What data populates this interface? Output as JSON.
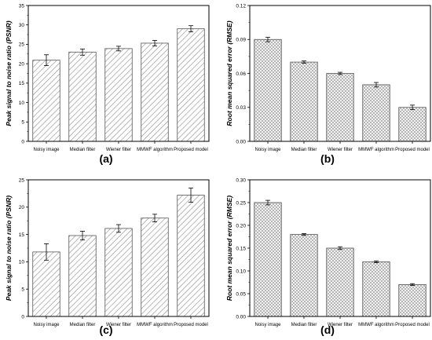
{
  "figure": {
    "panels": [
      {
        "label": "(a)"
      },
      {
        "label": "(b)"
      },
      {
        "label": "(c)"
      },
      {
        "label": "(d)"
      }
    ]
  },
  "chart_data": [
    {
      "type": "bar",
      "panel_label": "(a)",
      "categories": [
        "Noisy image",
        "Median filter",
        "Wiener filter",
        "MMWF algorithm",
        "Proposed model"
      ],
      "values": [
        20.9,
        23.0,
        23.9,
        25.3,
        29.0
      ],
      "errors": [
        1.4,
        0.8,
        0.6,
        0.7,
        0.8
      ],
      "xlabel": "",
      "ylabel": "Peak signal to noise ratio (PSNR)",
      "ylim": [
        0,
        35
      ],
      "yticks": [
        0,
        5,
        10,
        15,
        20,
        25,
        30,
        35
      ],
      "ytick_labels": [
        "0",
        "5",
        "10",
        "15",
        "20",
        "25",
        "30",
        "35"
      ],
      "grid": false,
      "bar_fill": "hatched",
      "colors": {
        "bar_stroke": "#555555",
        "hatch": "#888888",
        "axis": "#000000"
      }
    },
    {
      "type": "bar",
      "panel_label": "(b)",
      "categories": [
        "Noisy image",
        "Median filter",
        "Wiener filter",
        "MMWF algorithm",
        "Proposed model"
      ],
      "values": [
        0.09,
        0.07,
        0.06,
        0.05,
        0.03
      ],
      "errors": [
        0.002,
        0.001,
        0.001,
        0.002,
        0.002
      ],
      "xlabel": "",
      "ylabel": "Root mean squared error (RMSE)",
      "ylim": [
        0,
        0.12
      ],
      "yticks": [
        0,
        0.03,
        0.06,
        0.09,
        0.12
      ],
      "ytick_labels": [
        "0.00",
        "0.03",
        "0.06",
        "0.09",
        "0.12"
      ],
      "grid": false,
      "bar_fill": "crosshatched",
      "colors": {
        "bar_stroke": "#555555",
        "hatch": "#888888",
        "axis": "#000000"
      }
    },
    {
      "type": "bar",
      "panel_label": "(c)",
      "categories": [
        "Noisy image",
        "Median filter",
        "Wiener filter",
        "MMWF algorithm",
        "Proposed model"
      ],
      "values": [
        11.8,
        14.8,
        16.1,
        18.0,
        22.2
      ],
      "errors": [
        1.5,
        0.8,
        0.7,
        0.7,
        1.3
      ],
      "xlabel": "",
      "ylabel": "Peak signal to noise ratio (PSNR)",
      "ylim": [
        0,
        25
      ],
      "yticks": [
        0,
        5,
        10,
        15,
        20,
        25
      ],
      "ytick_labels": [
        "0",
        "5",
        "10",
        "15",
        "20",
        "25"
      ],
      "grid": false,
      "bar_fill": "hatched",
      "colors": {
        "bar_stroke": "#555555",
        "hatch": "#888888",
        "axis": "#000000"
      }
    },
    {
      "type": "bar",
      "panel_label": "(d)",
      "categories": [
        "Noisy image",
        "Median filter",
        "Wiener filter",
        "MMWF algorithm",
        "Proposed model"
      ],
      "values": [
        0.25,
        0.18,
        0.15,
        0.12,
        0.07
      ],
      "errors": [
        0.005,
        0.002,
        0.003,
        0.002,
        0.002
      ],
      "xlabel": "",
      "ylabel": "Root mean squared error (RMSE)",
      "ylim": [
        0,
        0.3
      ],
      "yticks": [
        0,
        0.05,
        0.1,
        0.15,
        0.2,
        0.25,
        0.3
      ],
      "ytick_labels": [
        "0.00",
        "0.05",
        "0.10",
        "0.15",
        "0.20",
        "0.25",
        "0.30"
      ],
      "grid": false,
      "bar_fill": "crosshatched",
      "colors": {
        "bar_stroke": "#555555",
        "hatch": "#888888",
        "axis": "#000000"
      }
    }
  ]
}
